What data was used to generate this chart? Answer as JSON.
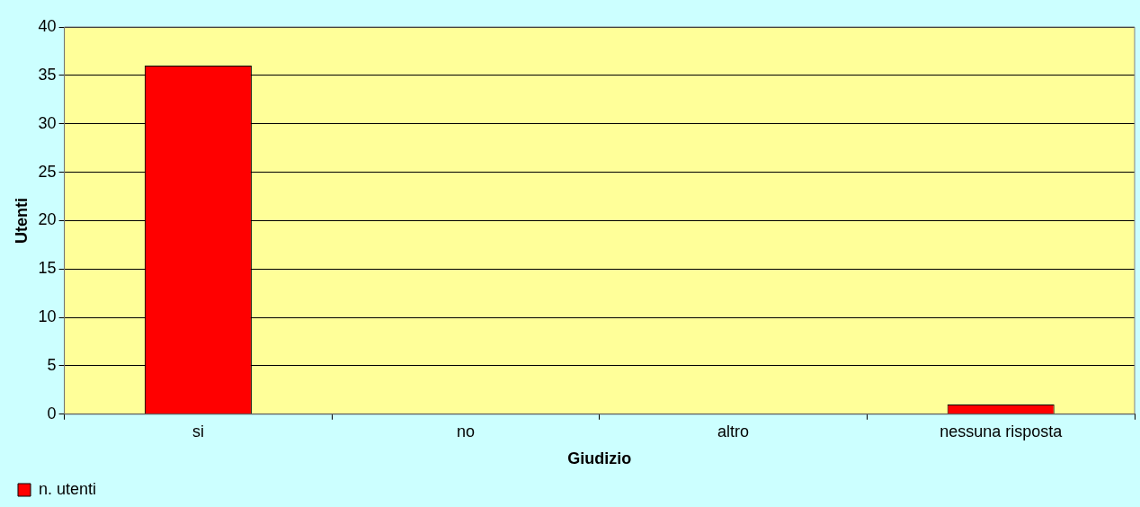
{
  "chart_data": {
    "type": "bar",
    "xlabel": "Giudizio",
    "ylabel": "Utenti",
    "categories": [
      "si",
      "no",
      "altro",
      "nessuna risposta"
    ],
    "series": [
      {
        "name": "n. utenti",
        "color": "#ff0000",
        "values": [
          36,
          0,
          0,
          1
        ]
      }
    ],
    "ylim": [
      0,
      40
    ],
    "yticks": [
      0,
      5,
      10,
      15,
      20,
      25,
      30,
      35,
      40
    ],
    "grid": "y",
    "legend": "bottom left"
  }
}
